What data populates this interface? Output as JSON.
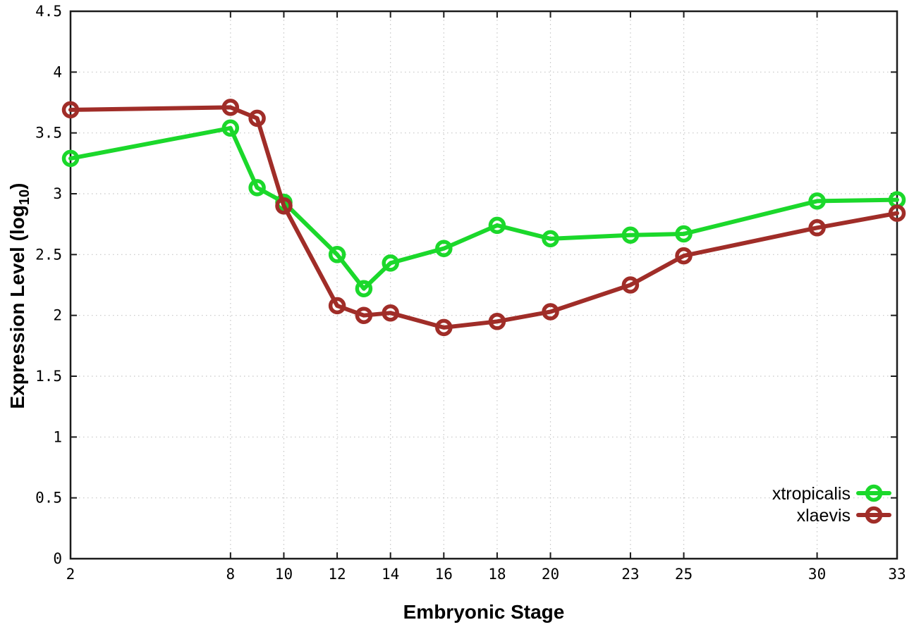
{
  "figure": {
    "background": "#ffffff",
    "xlabel": "Embryonic Stage",
    "ylabel_prefix": "Expression Level (log",
    "ylabel_subscript": "10",
    "ylabel_suffix": ")"
  },
  "chart_data": {
    "type": "line",
    "title": "",
    "xlabel": "Embryonic Stage",
    "ylabel": "Expression Level (log_10)",
    "xlim": [
      2,
      33
    ],
    "ylim": [
      0,
      4.5
    ],
    "x_ticks": [
      2,
      8,
      10,
      12,
      14,
      16,
      18,
      20,
      23,
      25,
      30,
      33
    ],
    "y_ticks": [
      0,
      0.5,
      1,
      1.5,
      2,
      2.5,
      3,
      3.5,
      4,
      4.5
    ],
    "grid": true,
    "grid_style": "dotted",
    "legend_position": "inside-bottom-right",
    "x": [
      2,
      8,
      9,
      10,
      12,
      13,
      14,
      16,
      18,
      20,
      23,
      25,
      30,
      33
    ],
    "series": [
      {
        "name": "xtropicalis",
        "color": "#1bd82b",
        "marker": "open-circle",
        "values": [
          3.29,
          3.54,
          3.05,
          2.93,
          2.5,
          2.22,
          2.43,
          2.55,
          2.74,
          2.63,
          2.66,
          2.67,
          2.94,
          2.95
        ]
      },
      {
        "name": "xlaevis",
        "color": "#a02d28",
        "marker": "open-circle",
        "values": [
          3.69,
          3.71,
          3.62,
          2.9,
          2.08,
          2.0,
          2.02,
          1.9,
          1.95,
          2.03,
          2.25,
          2.49,
          2.72,
          2.84
        ]
      }
    ],
    "colors": {
      "grid": "#c6c6c6",
      "axis": "#1c1c1c",
      "text": "#000000"
    }
  }
}
